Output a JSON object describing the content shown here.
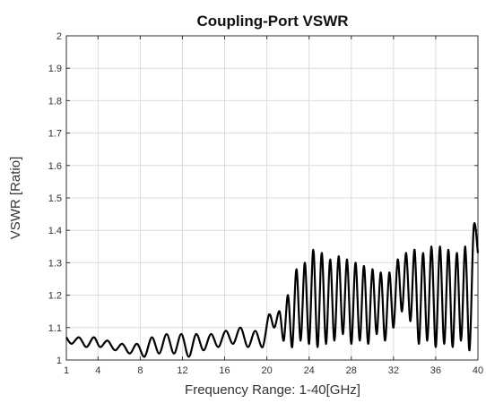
{
  "chart_data": {
    "type": "line",
    "title": "Coupling-Port VSWR",
    "xlabel": "Frequency Range: 1-40[GHz]",
    "ylabel": "VSWR [Ratio]",
    "xlim": [
      1,
      40
    ],
    "ylim": [
      1,
      2
    ],
    "grid": true,
    "x_ticks": [
      1,
      4,
      8,
      12,
      16,
      20,
      24,
      28,
      32,
      36,
      40
    ],
    "y_ticks": [
      1,
      1.1,
      1.2,
      1.3,
      1.4,
      1.5,
      1.6,
      1.7,
      1.8,
      1.9,
      2
    ],
    "x_tick_labels": [
      "1",
      "4",
      "8",
      "12",
      "16",
      "20",
      "24",
      "28",
      "32",
      "36",
      "40"
    ],
    "y_tick_labels": [
      "1",
      "1.1",
      "1.2",
      "1.3",
      "1.4",
      "1.5",
      "1.6",
      "1.7",
      "1.8",
      "1.9",
      "2"
    ],
    "series": [
      {
        "color": "#000000",
        "x": [
          1.0,
          1.5,
          2.2,
          2.9,
          3.6,
          4.2,
          4.9,
          5.6,
          6.3,
          7.0,
          7.7,
          8.4,
          9.1,
          9.8,
          10.5,
          11.2,
          11.9,
          12.6,
          13.3,
          14.0,
          14.7,
          15.4,
          16.1,
          16.8,
          17.5,
          18.2,
          18.9,
          19.6,
          20.2,
          20.7,
          21.2,
          21.6,
          22.0,
          22.4,
          22.8,
          23.2,
          23.6,
          24.0,
          24.4,
          24.8,
          25.2,
          25.6,
          26.0,
          26.4,
          26.8,
          27.2,
          27.6,
          28.0,
          28.4,
          28.8,
          29.2,
          29.6,
          30.0,
          30.4,
          30.8,
          31.2,
          31.6,
          32.0,
          32.4,
          32.8,
          33.2,
          33.6,
          34.0,
          34.4,
          34.8,
          35.2,
          35.6,
          36.0,
          36.4,
          36.8,
          37.2,
          37.6,
          38.0,
          38.4,
          38.8,
          39.2,
          39.6,
          40.0
        ],
        "y": [
          1.07,
          1.05,
          1.07,
          1.04,
          1.07,
          1.04,
          1.06,
          1.03,
          1.05,
          1.02,
          1.05,
          1.01,
          1.07,
          1.02,
          1.08,
          1.02,
          1.08,
          1.01,
          1.08,
          1.03,
          1.08,
          1.04,
          1.09,
          1.05,
          1.1,
          1.04,
          1.09,
          1.04,
          1.14,
          1.1,
          1.15,
          1.06,
          1.2,
          1.04,
          1.28,
          1.06,
          1.3,
          1.05,
          1.34,
          1.04,
          1.33,
          1.05,
          1.31,
          1.06,
          1.32,
          1.08,
          1.31,
          1.05,
          1.3,
          1.06,
          1.29,
          1.05,
          1.28,
          1.08,
          1.27,
          1.06,
          1.27,
          1.1,
          1.31,
          1.15,
          1.33,
          1.12,
          1.34,
          1.05,
          1.33,
          1.06,
          1.35,
          1.04,
          1.35,
          1.05,
          1.34,
          1.04,
          1.33,
          1.06,
          1.35,
          1.03,
          1.41,
          1.33
        ]
      }
    ]
  }
}
